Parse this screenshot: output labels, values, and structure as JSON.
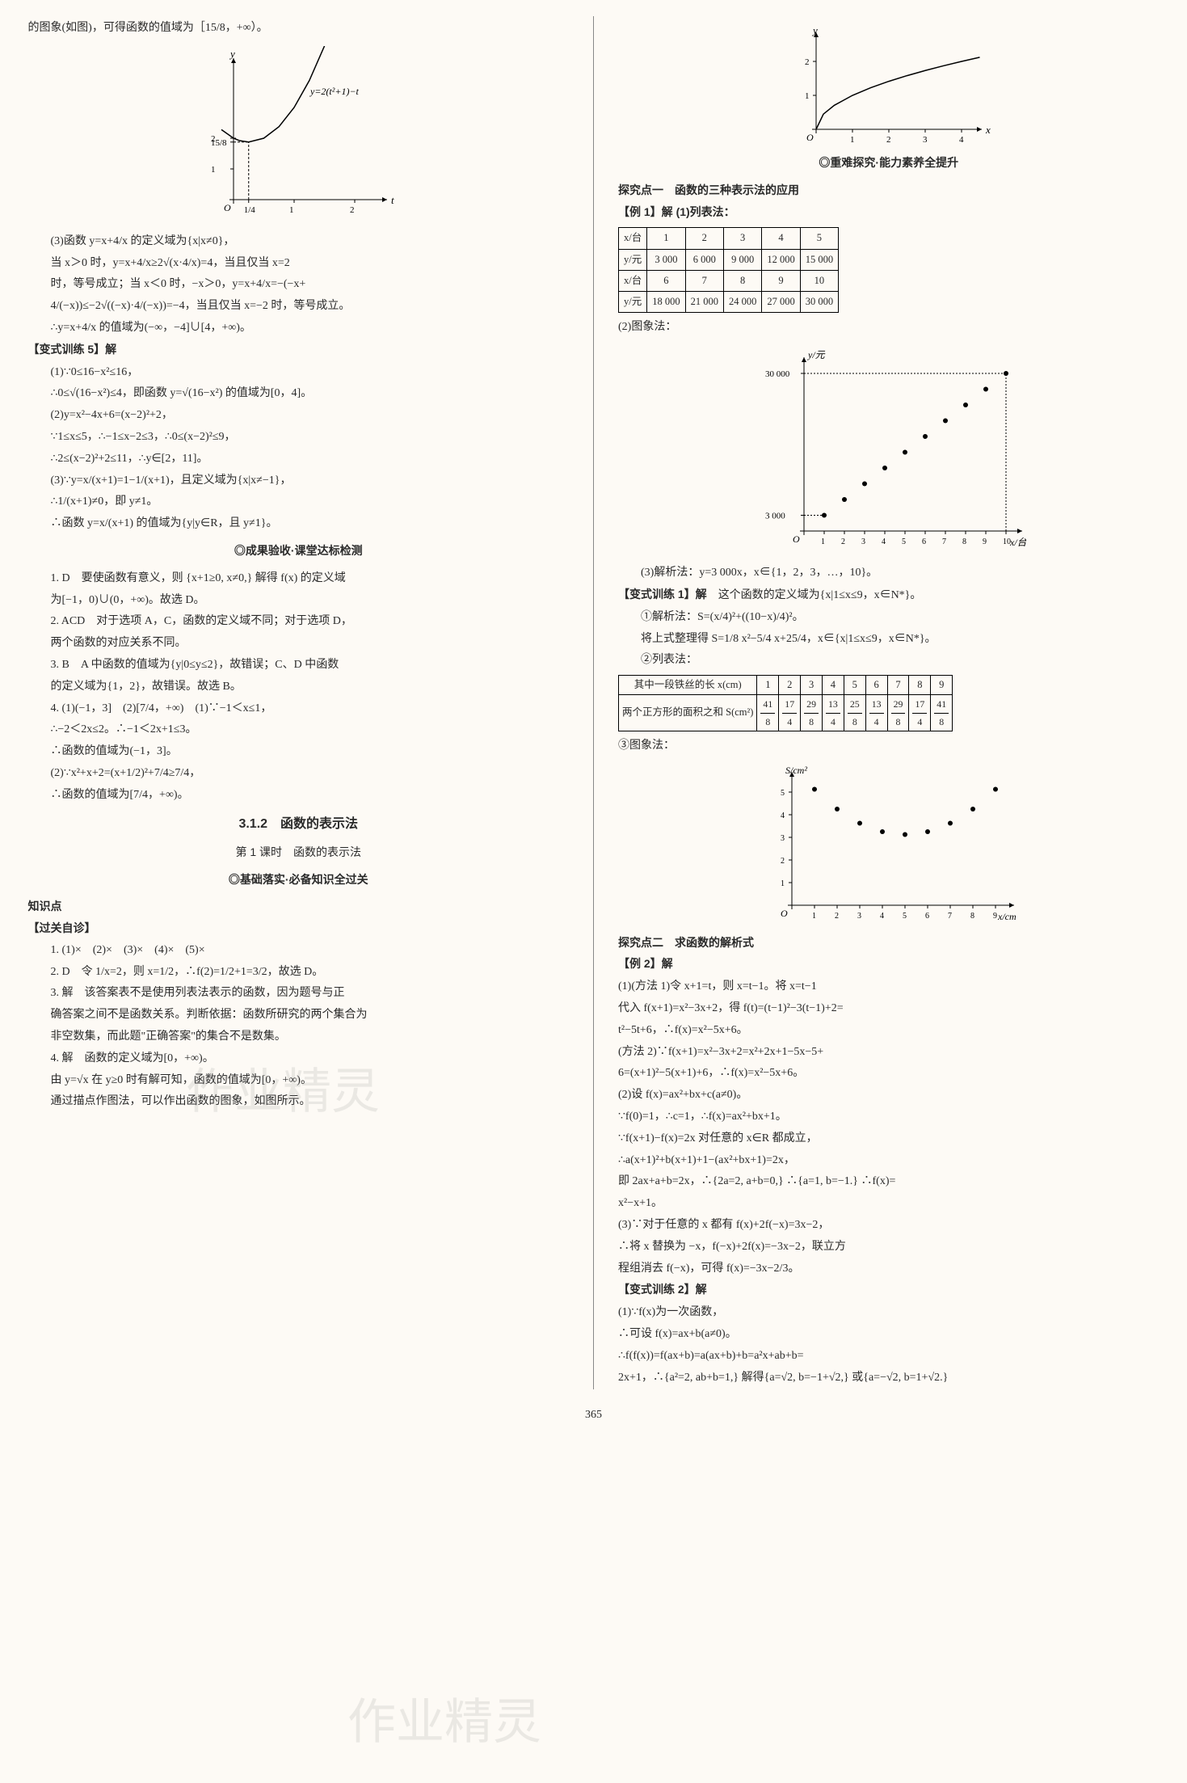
{
  "leftCol": {
    "intro": "的图象(如图)，可得函数的值域为［15/8，+∞）。",
    "chart1": {
      "type": "line",
      "curve_label": "y=2(t²+1)−t",
      "xlabel": "t",
      "ylabel": "y",
      "xticks": [
        0,
        0.25,
        1,
        2
      ],
      "xtick_labels": [
        "O",
        "1/4",
        "1",
        "2"
      ],
      "yticks": [
        1,
        1.875,
        2
      ],
      "ytick_labels": [
        "1",
        "15/8",
        "2"
      ],
      "xlim": [
        -0.3,
        2.5
      ],
      "ylim": [
        -0.3,
        4.5
      ],
      "curve_points_t": [
        -0.2,
        0,
        0.1,
        0.25,
        0.5,
        0.75,
        1,
        1.25,
        1.5,
        1.75,
        2,
        2.2
      ],
      "curve_color": "#000000",
      "axis_color": "#000000",
      "dash_color": "#000000",
      "background": "#fdfaf5"
    },
    "block3_lines": [
      "(3)函数 y=x+4/x 的定义域为{x|x≠0}，",
      "当 x＞0 时，y=x+4/x≥2√(x·4/x)=4，当且仅当 x=2",
      "时，等号成立；当 x＜0 时，−x＞0，y=x+4/x=−(−x+",
      "4/(−x))≤−2√((−x)·4/(−x))=−4，当且仅当 x=−2 时，等号成立。",
      "∴y=x+4/x 的值域为(−∞，−4]∪[4，+∞)。"
    ],
    "bianshi5_title": "【变式训练 5】解",
    "bianshi5_lines": [
      "(1)∵0≤16−x²≤16，",
      "∴0≤√(16−x²)≤4，即函数 y=√(16−x²) 的值域为[0，4]。",
      "(2)y=x²−4x+6=(x−2)²+2，",
      "∵1≤x≤5，∴−1≤x−2≤3，∴0≤(x−2)²≤9，",
      "∴2≤(x−2)²+2≤11，∴y∈[2，11]。",
      "(3)∵y=x/(x+1)=1−1/(x+1)，且定义域为{x|x≠−1}，",
      "∴1/(x+1)≠0，即 y≠1。",
      "∴函数 y=x/(x+1) 的值域为{y|y∈R，且 y≠1}。"
    ],
    "chengguoTitle": "◎成果验收·课堂达标检测",
    "chengguoLines": [
      "1. D　要使函数有意义，则 {x+1≥0, x≠0,} 解得 f(x) 的定义域",
      "为[−1，0)∪(0，+∞)。故选 D。",
      "2. ACD　对于选项 A，C，函数的定义域不同；对于选项 D，",
      "两个函数的对应关系不同。",
      "3. B　A 中函数的值域为{y|0≤y≤2}，故错误；C、D 中函数",
      "的定义域为{1，2}，故错误。故选 B。",
      "4. (1)(−1，3]　(2)[7/4，+∞)　(1)∵−1＜x≤1，",
      "∴−2＜2x≤2。∴−1＜2x+1≤3。",
      "∴函数的值域为(−1，3]。",
      "(2)∵x²+x+2=(x+1/2)²+7/4≥7/4，",
      "∴函数的值域为[7/4，+∞)。"
    ],
    "heading312": "3.1.2　函数的表示法",
    "lesson1": "第 1 课时　函数的表示法",
    "jichuTitle": "◎基础落实·必备知识全过关",
    "zhishidian": "知识点",
    "guoguan": "【过关自诊】",
    "guoguanLines": [
      "1. (1)×　(2)×　(3)×　(4)×　(5)×",
      "2. D　令 1/x=2，则 x=1/2，∴f(2)=1/2+1=3/2，故选 D。",
      "3. 解　该答案表不是使用列表法表示的函数，因为题号与正",
      "确答案之间不是函数关系。判断依据：函数所研究的两个集合为",
      "非空数集，而此题\"正确答案\"的集合不是数集。",
      "4. 解　函数的定义域为[0，+∞)。",
      "由 y=√x 在 y≥0 时有解可知，函数的值域为[0，+∞)。",
      "通过描点作图法，可以作出函数的图象，如图所示。"
    ]
  },
  "rightCol": {
    "chart_top": {
      "type": "line",
      "xlabel": "x",
      "ylabel": "y",
      "xticks": [
        0,
        1,
        2,
        3,
        4
      ],
      "yticks": [
        1,
        2
      ],
      "xlim": [
        -0.3,
        5
      ],
      "ylim": [
        -0.3,
        2.8
      ],
      "curve_points_x": [
        0,
        0.2,
        0.5,
        1,
        1.5,
        2,
        2.5,
        3,
        3.5,
        4,
        4.5
      ],
      "curve_color": "#000000",
      "axis_color": "#000000",
      "background": "#fdfaf5"
    },
    "zhongnanTitle": "◎重难探究·能力素养全提升",
    "tanjiu1": "探究点一　函数的三种表示法的应用",
    "li1": "【例 1】解 (1)列表法：",
    "table1": {
      "row1_label": "x/台",
      "row1": [
        "1",
        "2",
        "3",
        "4",
        "5"
      ],
      "row2_label": "y/元",
      "row2": [
        "3 000",
        "6 000",
        "9 000",
        "12 000",
        "15 000"
      ],
      "row3_label": "x/台",
      "row3": [
        "6",
        "7",
        "8",
        "9",
        "10"
      ],
      "row4_label": "y/元",
      "row4": [
        "18 000",
        "21 000",
        "24 000",
        "27 000",
        "30 000"
      ]
    },
    "tuxiangfa": "(2)图象法：",
    "chart_scatter": {
      "type": "scatter",
      "xlabel": "x/台",
      "ylabel": "y/元",
      "xticks": [
        1,
        2,
        3,
        4,
        5,
        6,
        7,
        8,
        9,
        10
      ],
      "yticks": [
        3000,
        30000
      ],
      "ytick_labels": [
        "3 000",
        "30 000"
      ],
      "xlim": [
        0,
        11
      ],
      "ylim": [
        0,
        33000
      ],
      "points_x": [
        1,
        2,
        3,
        4,
        5,
        6,
        7,
        8,
        9,
        10
      ],
      "points_y": [
        3000,
        6000,
        9000,
        12000,
        15000,
        18000,
        21000,
        24000,
        27000,
        30000
      ],
      "marker_color": "#000000",
      "marker_size": 3,
      "axis_color": "#000000",
      "background": "#fdfaf5"
    },
    "jiexifa": "(3)解析法：y=3 000x，x∈{1，2，3，…，10}。",
    "bianshi1_title": "【变式训练 1】解",
    "bianshi1_intro": "这个函数的定义域为{x|1≤x≤9，x∈N*}。",
    "bianshi1_lines": [
      "①解析法：S=(x/4)²+((10−x)/4)²。",
      "将上式整理得 S=1/8 x²−5/4 x+25/4，x∈{x|1≤x≤9，x∈N*}。",
      "②列表法："
    ],
    "table2": {
      "header1": "其中一段铁丝的长 x(cm)",
      "header2": "两个正方形的面积之和 S(cm²)",
      "cols": [
        "1",
        "2",
        "3",
        "4",
        "5",
        "6",
        "7",
        "8",
        "9"
      ],
      "vals_num": [
        "41",
        "17",
        "29",
        "13",
        "25",
        "13",
        "29",
        "17",
        "41"
      ],
      "vals_den": [
        "8",
        "4",
        "8",
        "4",
        "8",
        "4",
        "8",
        "4",
        "8"
      ]
    },
    "tuxiangfa3": "③图象法：",
    "chart_s": {
      "type": "scatter",
      "xlabel": "x/cm",
      "ylabel": "S/cm²",
      "xticks": [
        1,
        2,
        3,
        4,
        5,
        6,
        7,
        8,
        9
      ],
      "yticks": [
        1,
        2,
        3,
        4,
        5
      ],
      "xlim": [
        0,
        10
      ],
      "ylim": [
        0,
        6
      ],
      "points_x": [
        1,
        2,
        3,
        4,
        5,
        6,
        7,
        8,
        9
      ],
      "points_y": [
        5.125,
        4.25,
        3.625,
        3.25,
        3.125,
        3.25,
        3.625,
        4.25,
        5.125
      ],
      "marker_color": "#000000",
      "marker_size": 3,
      "axis_color": "#000000",
      "background": "#fdfaf5"
    },
    "tanjiu2": "探究点二　求函数的解析式",
    "li2": "【例 2】解",
    "li2_lines": [
      "(1)(方法 1)令 x+1=t，则 x=t−1。将 x=t−1",
      "代入 f(x+1)=x²−3x+2，得 f(t)=(t−1)²−3(t−1)+2=",
      "t²−5t+6，∴f(x)=x²−5x+6。",
      "(方法 2)∵f(x+1)=x²−3x+2=x²+2x+1−5x−5+",
      "6=(x+1)²−5(x+1)+6，∴f(x)=x²−5x+6。",
      "(2)设 f(x)=ax²+bx+c(a≠0)。",
      "∵f(0)=1，∴c=1，∴f(x)=ax²+bx+1。",
      "∵f(x+1)−f(x)=2x 对任意的 x∈R 都成立，",
      "∴a(x+1)²+b(x+1)+1−(ax²+bx+1)=2x，",
      "即 2ax+a+b=2x，∴{2a=2, a+b=0,} ∴{a=1, b=−1.} ∴f(x)=",
      "x²−x+1。",
      "(3)∵对于任意的 x 都有 f(x)+2f(−x)=3x−2，",
      "∴将 x 替换为 −x，f(−x)+2f(x)=−3x−2，联立方",
      "程组消去 f(−x)，可得 f(x)=−3x−2/3。"
    ],
    "bianshi2_title": "【变式训练 2】解",
    "bianshi2_lines": [
      "(1)∵f(x)为一次函数，",
      "∴可设 f(x)=ax+b(a≠0)。",
      "∴f(f(x))=f(ax+b)=a(ax+b)+b=a²x+ab+b=",
      "2x+1，∴{a²=2, ab+b=1,} 解得{a=√2, b=−1+√2,} 或{a=−√2, b=1+√2.}"
    ]
  },
  "pagenum": "365",
  "watermark": "作业精灵"
}
